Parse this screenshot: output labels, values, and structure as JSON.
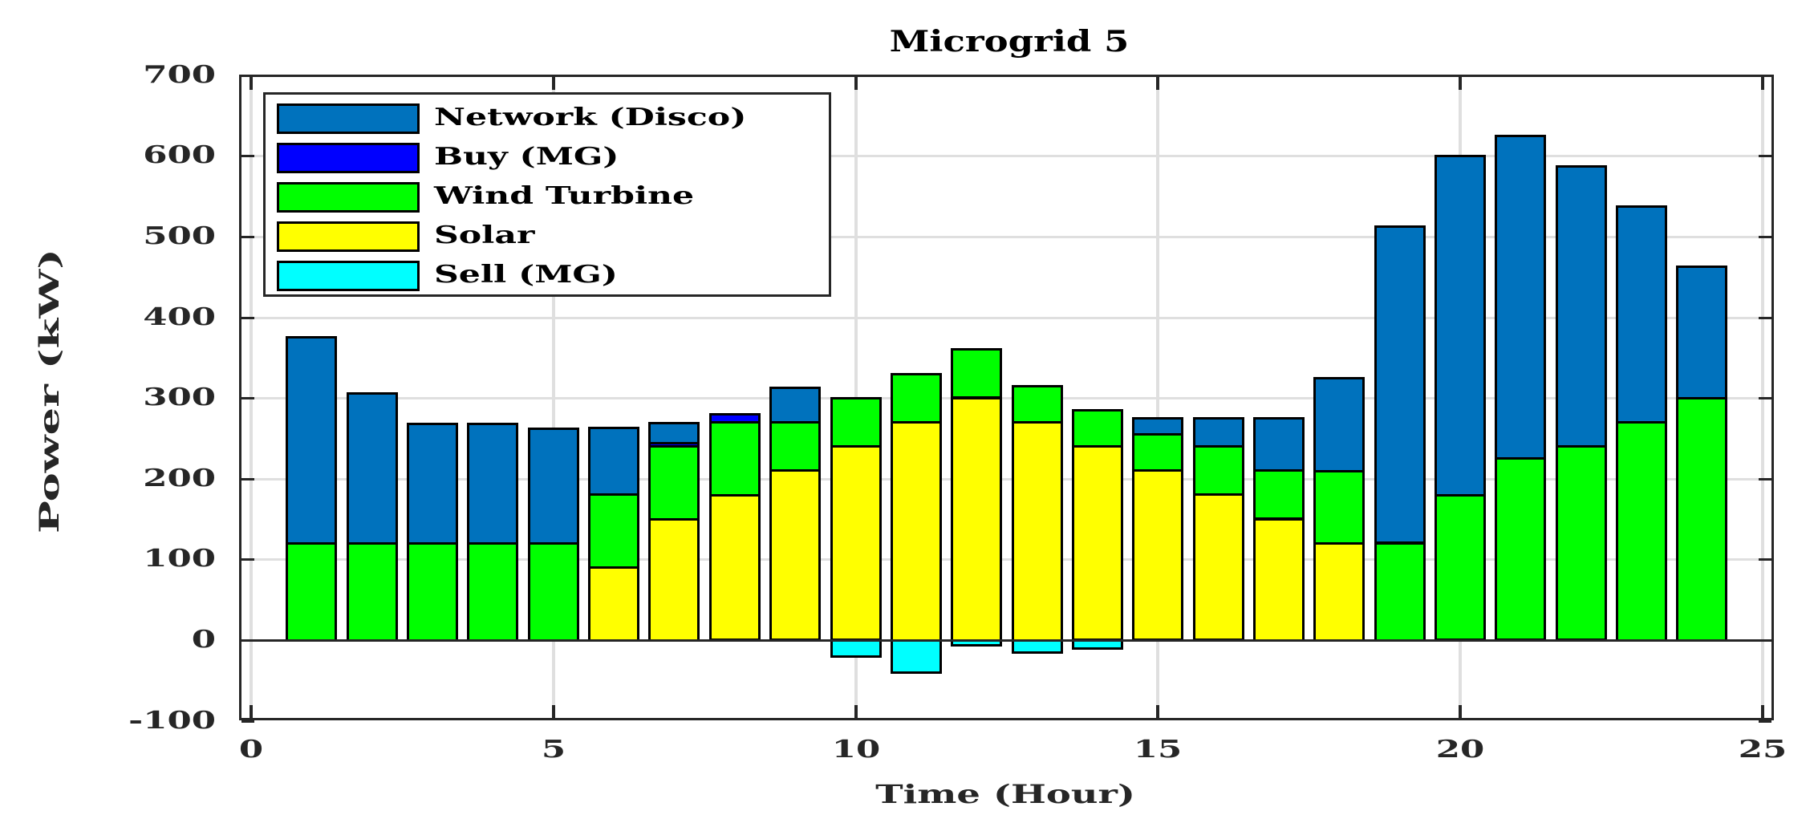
{
  "chart_data": {
    "type": "bar",
    "stacked": true,
    "title": "Microgrid 5",
    "xlabel": "Time (Hour)",
    "ylabel": "Power (kW)",
    "xlim": [
      0,
      25
    ],
    "ylim": [
      -100,
      700
    ],
    "xticks": [
      0,
      5,
      10,
      15,
      20,
      25
    ],
    "yticks": [
      -100,
      0,
      100,
      200,
      300,
      400,
      500,
      600,
      700
    ],
    "grid": true,
    "legend_position": "upper-left",
    "categories": [
      1,
      2,
      3,
      4,
      5,
      6,
      7,
      8,
      9,
      10,
      11,
      12,
      13,
      14,
      15,
      16,
      17,
      18,
      19,
      20,
      21,
      22,
      23,
      24
    ],
    "stack_order_bottom_to_top": [
      "Solar",
      "Wind Turbine",
      "Buy (MG)",
      "Network (Disco)"
    ],
    "series": [
      {
        "name": "Network (Disco)",
        "color": "#0072BD",
        "values": [
          255,
          186,
          148,
          148,
          142,
          83,
          25,
          0,
          43,
          0,
          0,
          0,
          0,
          0,
          20,
          35,
          65,
          115,
          392,
          420,
          400,
          347,
          267,
          163
        ]
      },
      {
        "name": "Buy (MG)",
        "color": "#0000FF",
        "values": [
          0,
          0,
          0,
          0,
          0,
          0,
          4,
          10,
          0,
          0,
          0,
          0,
          0,
          0,
          0,
          0,
          0,
          0,
          0,
          0,
          0,
          0,
          0,
          0
        ]
      },
      {
        "name": "Wind Turbine",
        "color": "#00FF00",
        "values": [
          120,
          120,
          120,
          120,
          120,
          90,
          90,
          90,
          60,
          60,
          60,
          60,
          45,
          45,
          45,
          60,
          60,
          90,
          120,
          180,
          225,
          240,
          270,
          300
        ]
      },
      {
        "name": "Solar",
        "color": "#FFFF00",
        "values": [
          0,
          0,
          0,
          0,
          0,
          90,
          150,
          180,
          210,
          240,
          270,
          300,
          270,
          240,
          210,
          180,
          150,
          120,
          0,
          0,
          0,
          0,
          0,
          0
        ]
      },
      {
        "name": "Sell (MG)",
        "color": "#00FFFF",
        "values": [
          0,
          0,
          0,
          0,
          0,
          0,
          0,
          0,
          0,
          -20,
          -40,
          -6,
          -15,
          -10,
          0,
          0,
          0,
          0,
          0,
          0,
          0,
          0,
          0,
          0
        ]
      }
    ]
  },
  "labels": {
    "title": "Microgrid 5",
    "xlabel": "Time (Hour)",
    "ylabel": "Power (kW)",
    "xticks": [
      "0",
      "5",
      "10",
      "15",
      "20",
      "25"
    ],
    "yticks": [
      "700",
      "600",
      "500",
      "400",
      "300",
      "200",
      "100",
      "0",
      "-100"
    ]
  },
  "legend": {
    "items": [
      {
        "label": "Network (Disco)",
        "color": "#0072BD"
      },
      {
        "label": "Buy (MG)",
        "color": "#0000FF"
      },
      {
        "label": "Wind Turbine",
        "color": "#00FF00"
      },
      {
        "label": "Solar",
        "color": "#FFFF00"
      },
      {
        "label": "Sell (MG)",
        "color": "#00FFFF"
      }
    ]
  }
}
